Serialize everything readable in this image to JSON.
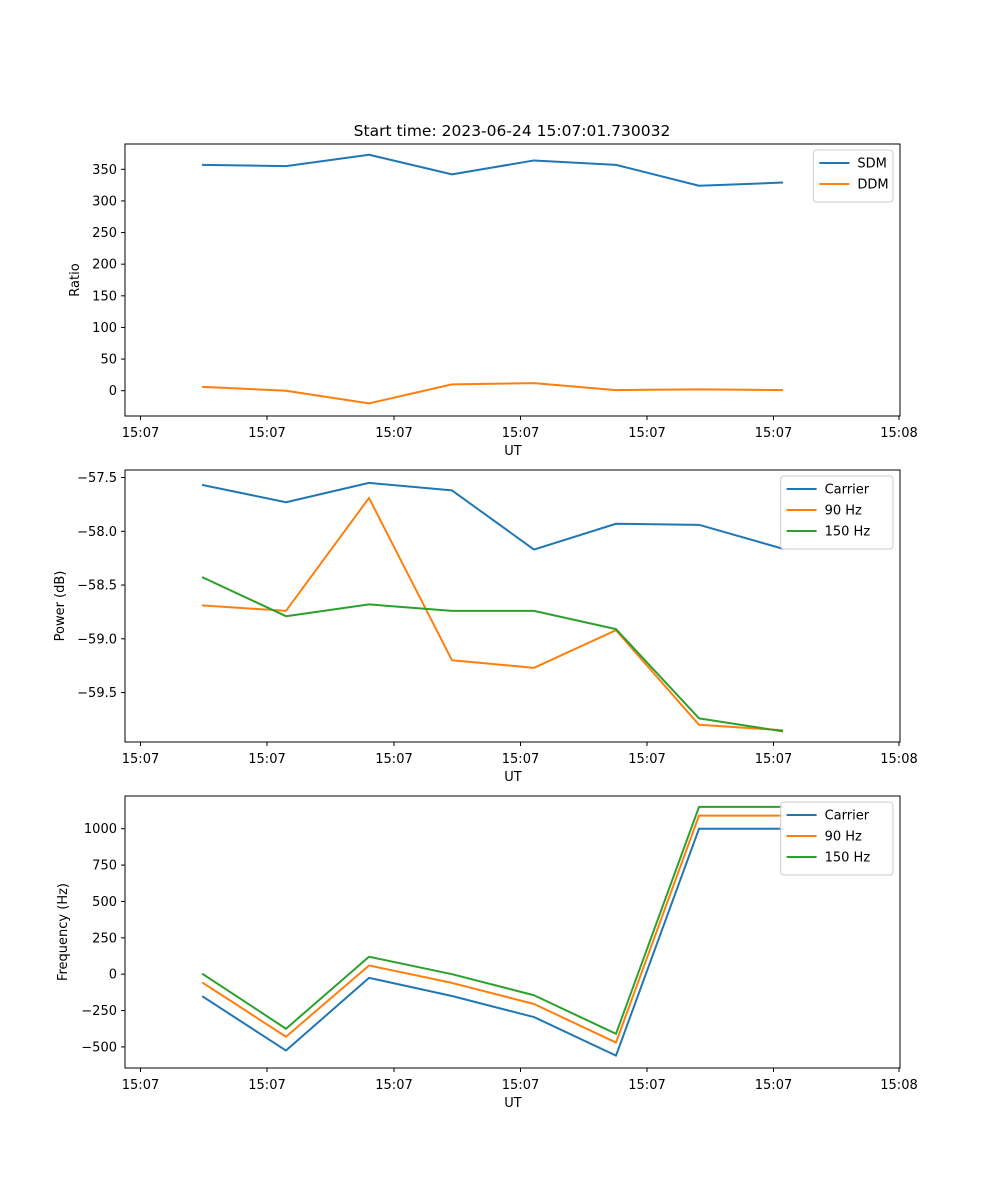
{
  "figure": {
    "title": "Start time: 2023-06-24 15:07:01.730032"
  },
  "chart_data": [
    {
      "type": "line",
      "xlabel": "UT",
      "ylabel": "Ratio",
      "x_tick_labels": [
        "15:07",
        "15:07",
        "15:07",
        "15:07",
        "15:07",
        "15:07",
        "15:08"
      ],
      "y_ticks": [
        0,
        50,
        100,
        150,
        200,
        250,
        300,
        350
      ],
      "ylim": [
        -40,
        390
      ],
      "grid": false,
      "legend_position": "top-right",
      "series": [
        {
          "name": "SDM",
          "color": "#1f77b4",
          "values": [
            357,
            355,
            373,
            342,
            364,
            357,
            324,
            329
          ]
        },
        {
          "name": "DDM",
          "color": "#ff7f0e",
          "values": [
            6,
            0,
            -20,
            10,
            12,
            1,
            2,
            1
          ]
        }
      ]
    },
    {
      "type": "line",
      "xlabel": "UT",
      "ylabel": "Power (dB)",
      "x_tick_labels": [
        "15:07",
        "15:07",
        "15:07",
        "15:07",
        "15:07",
        "15:07",
        "15:08"
      ],
      "y_ticks": [
        -57.5,
        -58.0,
        -58.5,
        -59.0,
        -59.5
      ],
      "y_tick_labels": [
        "−57.5",
        "−58.0",
        "−58.5",
        "−59.0",
        "−59.5"
      ],
      "ylim": [
        -59.96,
        -57.43
      ],
      "grid": false,
      "legend_position": "top-right",
      "series": [
        {
          "name": "Carrier",
          "color": "#1f77b4",
          "values": [
            -57.57,
            -57.73,
            -57.55,
            -57.62,
            -58.17,
            -57.93,
            -57.94,
            -58.16
          ]
        },
        {
          "name": "90 Hz",
          "color": "#ff7f0e",
          "values": [
            -58.69,
            -58.74,
            -57.69,
            -59.2,
            -59.27,
            -58.92,
            -59.8,
            -59.85
          ]
        },
        {
          "name": "150 Hz",
          "color": "#2ca02c",
          "values": [
            -58.43,
            -58.79,
            -58.68,
            -58.74,
            -58.74,
            -58.91,
            -59.74,
            -59.86
          ]
        }
      ]
    },
    {
      "type": "line",
      "xlabel": "UT",
      "ylabel": "Frequency (Hz)",
      "x_tick_labels": [
        "15:07",
        "15:07",
        "15:07",
        "15:07",
        "15:07",
        "15:07",
        "15:08"
      ],
      "y_ticks": [
        -500,
        -250,
        0,
        250,
        500,
        750,
        1000
      ],
      "y_tick_labels": [
        "−500",
        "−250",
        "0",
        "250",
        "500",
        "750",
        "1000"
      ],
      "ylim": [
        -645,
        1225
      ],
      "grid": false,
      "legend_position": "top-right",
      "series": [
        {
          "name": "Carrier",
          "color": "#1f77b4",
          "values": [
            -155,
            -525,
            -25,
            -150,
            -295,
            -560,
            1000,
            1000
          ]
        },
        {
          "name": "90 Hz",
          "color": "#ff7f0e",
          "values": [
            -60,
            -430,
            60,
            -60,
            -205,
            -470,
            1090,
            1090
          ]
        },
        {
          "name": "150 Hz",
          "color": "#2ca02c",
          "values": [
            0,
            -375,
            120,
            0,
            -145,
            -410,
            1150,
            1150
          ]
        }
      ]
    }
  ]
}
